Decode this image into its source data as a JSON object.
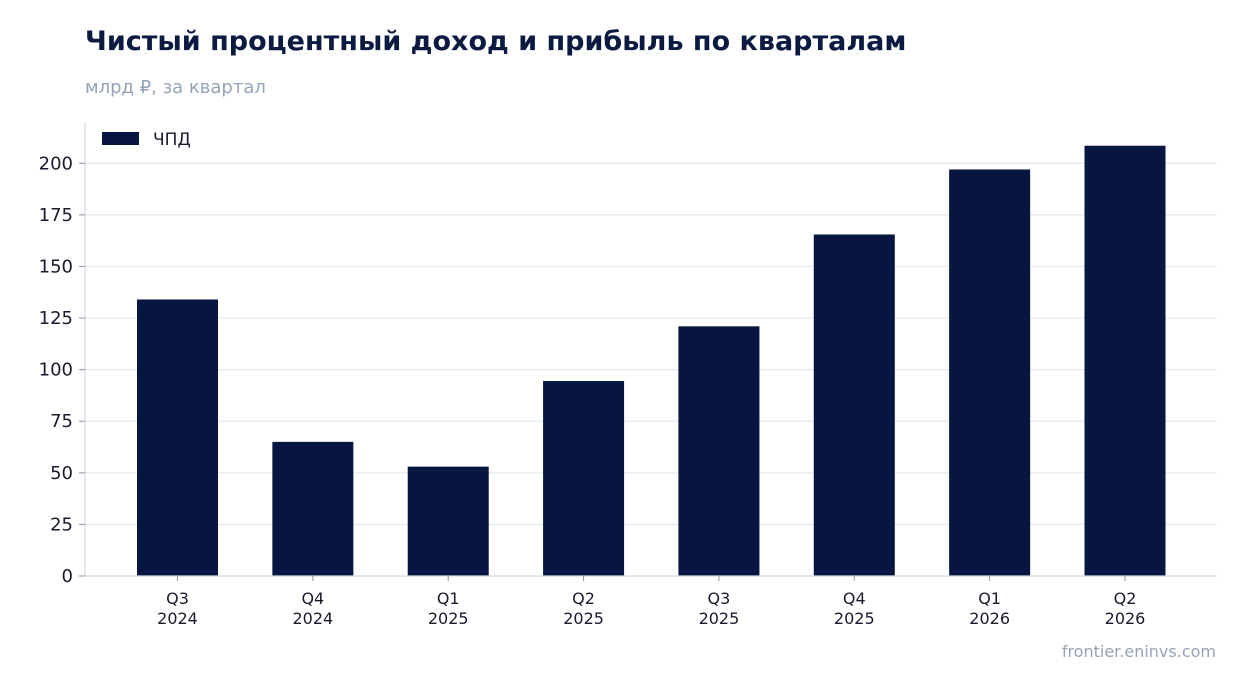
{
  "title": "Чистый процентный доход и прибыль по кварталам",
  "subtitle": "млрд ₽, за квартал",
  "source": "frontier.eninvs.com",
  "colors": {
    "bar": "#061640",
    "grid": "#e3e8ef",
    "axis": "#d5dbe4"
  },
  "chart_data": {
    "type": "bar",
    "title": "Чистый процентный доход и прибыль по кварталам",
    "subtitle": "млрд ₽, за квартал",
    "categories": [
      [
        "Q3",
        "2024"
      ],
      [
        "Q4",
        "2024"
      ],
      [
        "Q1",
        "2025"
      ],
      [
        "Q2",
        "2025"
      ],
      [
        "Q3",
        "2025"
      ],
      [
        "Q4",
        "2025"
      ],
      [
        "Q1",
        "2026"
      ],
      [
        "Q2",
        "2026"
      ]
    ],
    "series": [
      {
        "name": "ЧПД",
        "values": [
          134,
          65,
          53,
          94.5,
          121,
          165.5,
          197,
          208.5
        ]
      }
    ],
    "ylim": [
      0,
      220
    ],
    "yticks": [
      0,
      25,
      50,
      75,
      100,
      125,
      150,
      175,
      200
    ],
    "grid": true,
    "legend_position": "top-left"
  }
}
